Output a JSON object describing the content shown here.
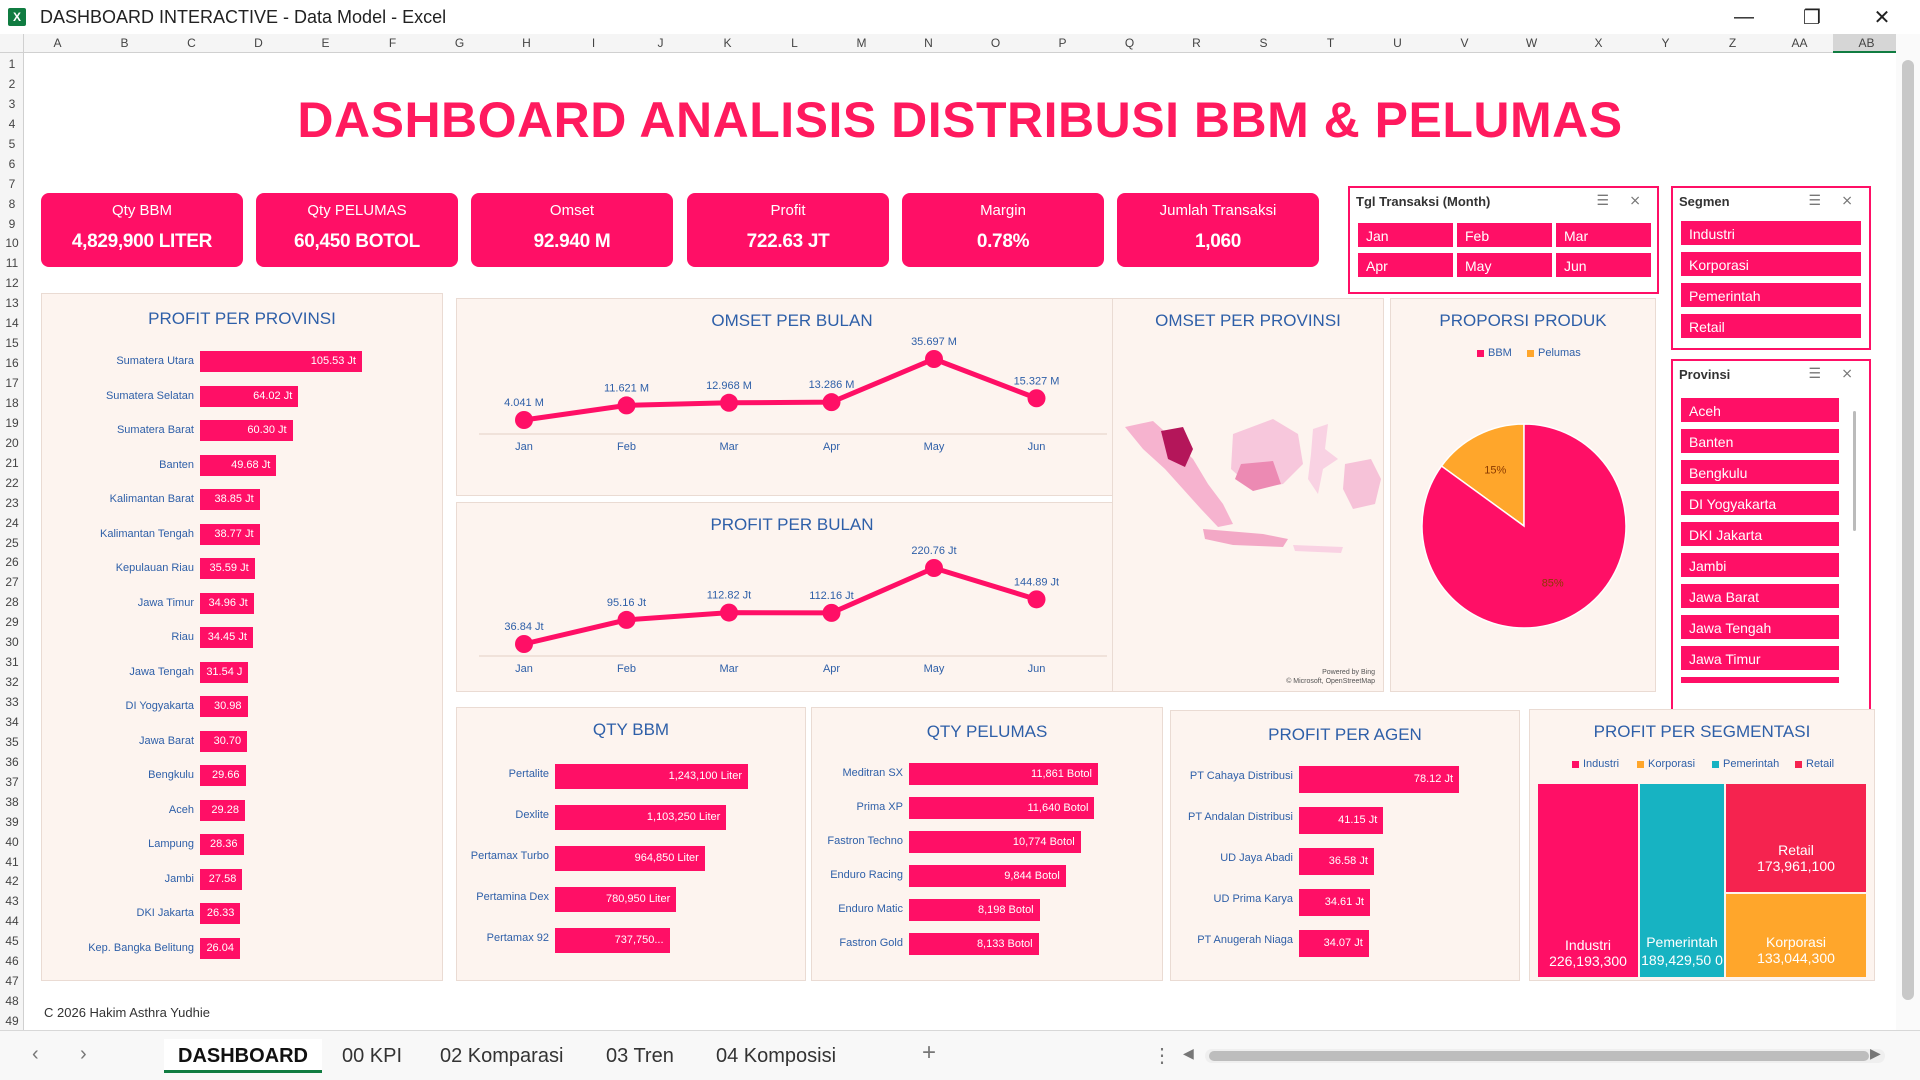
{
  "window": {
    "title": "DASHBOARD INTERACTIVE - Data Model - Excel",
    "app_icon_glyph": "X",
    "minimize_glyph": "—",
    "restore_glyph": "❐",
    "close_glyph": "✕"
  },
  "columns": [
    "A",
    "B",
    "C",
    "D",
    "E",
    "F",
    "G",
    "H",
    "I",
    "J",
    "K",
    "L",
    "M",
    "N",
    "O",
    "P",
    "Q",
    "R",
    "S",
    "T",
    "U",
    "V",
    "W",
    "X",
    "Y",
    "Z",
    "AA",
    "AB"
  ],
  "rows": [
    "1",
    "2",
    "3",
    "4",
    "5",
    "6",
    "7",
    "8",
    "9",
    "10",
    "11",
    "12",
    "13",
    "14",
    "15",
    "16",
    "17",
    "18",
    "19",
    "20",
    "21",
    "22",
    "23",
    "24",
    "25",
    "26",
    "27",
    "28",
    "29",
    "30",
    "31",
    "32",
    "33",
    "34",
    "35",
    "36",
    "37",
    "38",
    "39",
    "40",
    "41",
    "42",
    "43",
    "44",
    "45",
    "46",
    "47",
    "48",
    "49"
  ],
  "dashboard": {
    "title": "DASHBOARD ANALISIS DISTRIBUSI BBM & PELUMAS",
    "footer": "C 2026 Hakim Asthra Yudhie"
  },
  "kpis": [
    {
      "label": "Qty BBM",
      "value": "4,829,900 LITER"
    },
    {
      "label": "Qty PELUMAS",
      "value": "60,450 BOTOL"
    },
    {
      "label": "Omset",
      "value": "92.940 M"
    },
    {
      "label": "Profit",
      "value": "722.63 JT"
    },
    {
      "label": "Margin",
      "value": "0.78%"
    },
    {
      "label": "Jumlah Transaksi",
      "value": "1,060"
    }
  ],
  "slicers": {
    "month": {
      "title": "Tgl Transaksi (Month)",
      "items": [
        "Jan",
        "Feb",
        "Mar",
        "Apr",
        "May",
        "Jun"
      ]
    },
    "segmen": {
      "title": "Segmen",
      "items": [
        "Industri",
        "Korporasi",
        "Pemerintah",
        "Retail"
      ]
    },
    "provinsi": {
      "title": "Provinsi",
      "items": [
        "Aceh",
        "Banten",
        "Bengkulu",
        "DI Yogyakarta",
        "DKI Jakarta",
        "Jambi",
        "Jawa Barat",
        "Jawa Tengah",
        "Jawa Timur"
      ]
    },
    "icon_multiselect": "☰",
    "icon_clear": "⨯"
  },
  "chart_data": [
    {
      "id": "profit_provinsi",
      "type": "bar",
      "title": "PROFIT PER PROVINSI",
      "categories": [
        "Sumatera Utara",
        "Sumatera Selatan",
        "Sumatera Barat",
        "Banten",
        "Kalimantan Barat",
        "Kalimantan Tengah",
        "Kepulauan Riau",
        "Jawa Timur",
        "Riau",
        "Jawa Tengah",
        "DI Yogyakarta",
        "Jawa Barat",
        "Bengkulu",
        "Aceh",
        "Lampung",
        "Jambi",
        "DKI Jakarta",
        "Kep. Bangka Belitung"
      ],
      "values": [
        105.53,
        64.02,
        60.3,
        49.68,
        38.85,
        38.77,
        35.59,
        34.96,
        34.45,
        31.54,
        30.98,
        30.7,
        29.66,
        29.28,
        28.36,
        27.58,
        26.33,
        26.04
      ],
      "labels": [
        "105.53 Jt",
        "64.02 Jt",
        "60.30 Jt",
        "49.68 Jt",
        "38.85 Jt",
        "38.77 Jt",
        "35.59 Jt",
        "34.96 Jt",
        "34.45 Jt",
        "31.54 J",
        "30.98",
        "30.70",
        "29.66",
        "29.28",
        "28.36",
        "27.58",
        "26.33",
        "26.04"
      ]
    },
    {
      "id": "omset_bulan",
      "type": "line",
      "title": "OMSET PER BULAN",
      "categories": [
        "Jan",
        "Feb",
        "Mar",
        "Apr",
        "May",
        "Jun"
      ],
      "values": [
        4.041,
        11.621,
        12.968,
        13.286,
        35.697,
        15.327
      ],
      "labels": [
        "4.041 M",
        "11.621 M",
        "12.968 M",
        "13.286 M",
        "35.697 M",
        "15.327 M"
      ]
    },
    {
      "id": "profit_bulan",
      "type": "line",
      "title": "PROFIT PER BULAN",
      "categories": [
        "Jan",
        "Feb",
        "Mar",
        "Apr",
        "May",
        "Jun"
      ],
      "values": [
        36.84,
        95.16,
        112.82,
        112.16,
        220.76,
        144.89
      ],
      "labels": [
        "36.84 Jt",
        "95.16 Jt",
        "112.82 Jt",
        "112.16 Jt",
        "220.76 Jt",
        "144.89 Jt"
      ]
    },
    {
      "id": "proporsi_produk",
      "type": "pie",
      "title": "PROPORSI PRODUK",
      "categories": [
        "BBM",
        "Pelumas"
      ],
      "values": [
        85,
        15
      ],
      "labels": [
        "85%",
        "15%"
      ],
      "colors": [
        "#ff0f66",
        "#ffa62b"
      ]
    },
    {
      "id": "qty_bbm",
      "type": "bar",
      "title": "QTY BBM",
      "categories": [
        "Pertalite",
        "Dexlite",
        "Pertamax Turbo",
        "Pertamina Dex",
        "Pertamax 92"
      ],
      "values": [
        1243100,
        1103250,
        964850,
        780950,
        737750
      ],
      "labels": [
        "1,243,100 Liter",
        "1,103,250 Liter",
        "964,850 Liter",
        "780,950 Liter",
        "737,750..."
      ]
    },
    {
      "id": "qty_pelumas",
      "type": "bar",
      "title": "QTY PELUMAS",
      "categories": [
        "Meditran SX",
        "Prima XP",
        "Fastron Techno",
        "Enduro Racing",
        "Enduro Matic",
        "Fastron Gold"
      ],
      "values": [
        11861,
        11640,
        10774,
        9844,
        8198,
        8133
      ],
      "labels": [
        "11,861 Botol",
        "11,640 Botol",
        "10,774 Botol",
        "9,844 Botol",
        "8,198 Botol",
        "8,133 Botol"
      ]
    },
    {
      "id": "profit_agen",
      "type": "bar",
      "title": "PROFIT PER AGEN",
      "categories": [
        "PT Cahaya Distribusi",
        "PT Andalan Distribusi",
        "UD Jaya Abadi",
        "UD Prima Karya",
        "PT Anugerah Niaga"
      ],
      "values": [
        78.12,
        41.15,
        36.58,
        34.61,
        34.07
      ],
      "labels": [
        "78.12 Jt",
        "41.15 Jt",
        "36.58 Jt",
        "34.61 Jt",
        "34.07 Jt"
      ]
    },
    {
      "id": "profit_segmentasi",
      "type": "treemap",
      "title": "PROFIT PER SEGMENTASI",
      "categories": [
        "Industri",
        "Korporasi",
        "Pemerintah",
        "Retail"
      ],
      "values": [
        226193300,
        133044300,
        189429500,
        173961100
      ],
      "labels": [
        "226,193,300",
        "133,044,300",
        "189,429,50 0",
        "173,961,100"
      ],
      "colors": [
        "#ff0f66",
        "#ffa62b",
        "#17b3c2",
        "#f5234f"
      ]
    }
  ],
  "map": {
    "title": "OMSET PER PROVINSI",
    "credit1": "Powered by Bing",
    "credit2": "© Microsoft, OpenStreetMap"
  },
  "sheet_tabs": [
    "DASHBOARD",
    "00 KPI",
    "02 Komparasi",
    "03 Tren",
    "04 Komposisi"
  ],
  "sheet_nav": {
    "prev": "‹",
    "next": "›",
    "add": "+",
    "more": "⋮",
    "scroll_left": "◀",
    "scroll_right": "▶"
  }
}
